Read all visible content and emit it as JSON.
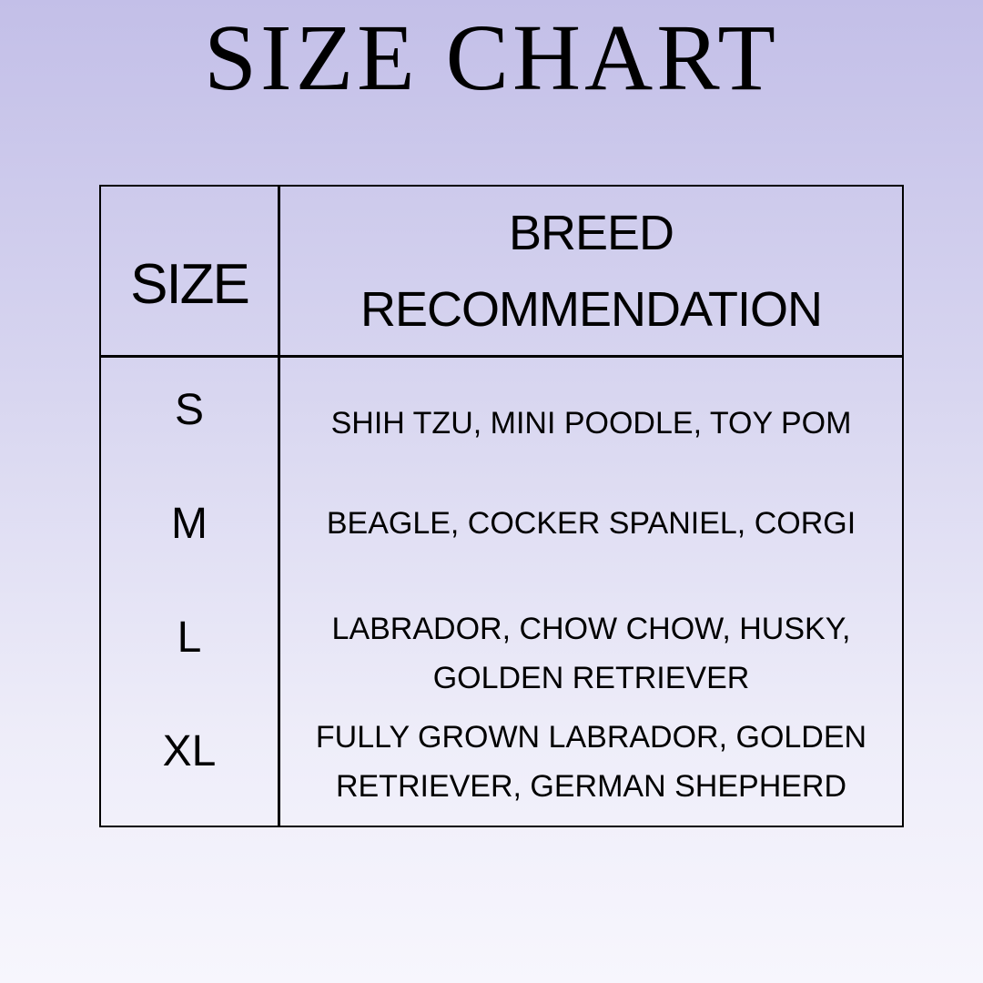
{
  "title": "SIZE CHART",
  "headers": {
    "size": "SIZE",
    "breed": "BREED RECOMMENDATION"
  },
  "rows": [
    {
      "size": "S",
      "breeds": "SHIH TZU, MINI POODLE, TOY POM"
    },
    {
      "size": "M",
      "breeds": "BEAGLE, COCKER SPANIEL, CORGI"
    },
    {
      "size": "L",
      "breeds": "LABRADOR, CHOW CHOW, HUSKY, GOLDEN RETRIEVER"
    },
    {
      "size": "XL",
      "breeds": "FULLY GROWN LABRADOR, GOLDEN RETRIEVER, GERMAN SHEPHERD"
    }
  ]
}
